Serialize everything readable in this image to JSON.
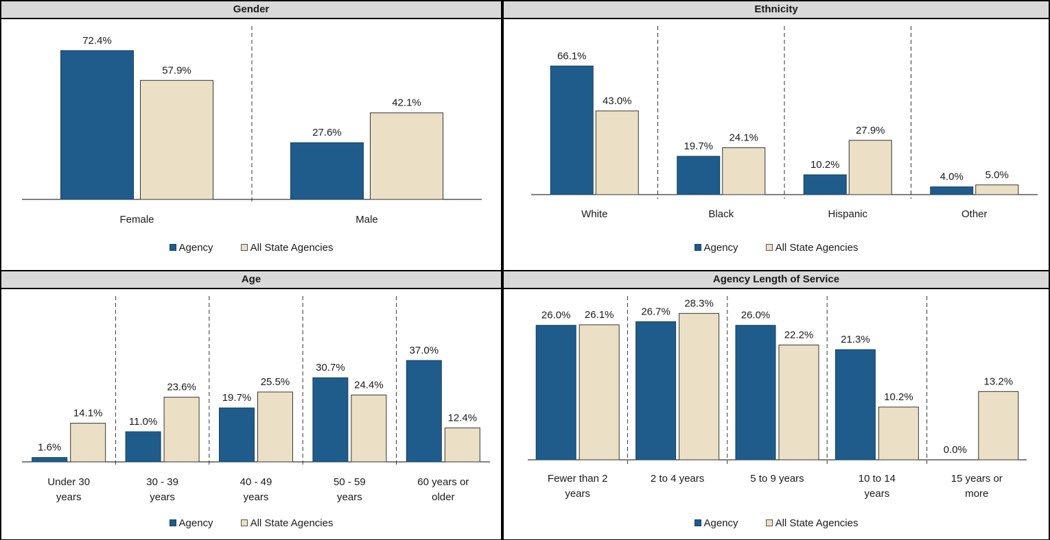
{
  "colors": {
    "agency": "#1f5c8b",
    "state": "#ebe0c5",
    "header_bg": "#d9d9d9"
  },
  "chart_data": [
    {
      "type": "bar",
      "title": "Gender",
      "categories": [
        "Female",
        "Male"
      ],
      "series": [
        {
          "name": "Agency",
          "values": [
            72.4,
            27.6
          ],
          "labels": [
            "72.4%",
            "27.6%"
          ]
        },
        {
          "name": "All State Agencies",
          "values": [
            57.9,
            42.1
          ],
          "labels": [
            "57.9%",
            "42.1%"
          ]
        }
      ],
      "ylim": [
        0,
        80
      ],
      "legend": "bottom",
      "grid": false
    },
    {
      "type": "bar",
      "title": "Ethnicity",
      "categories": [
        "White",
        "Black",
        "Hispanic",
        "Other"
      ],
      "series": [
        {
          "name": "Agency",
          "values": [
            66.1,
            19.7,
            10.2,
            4.0
          ],
          "labels": [
            "66.1%",
            "19.7%",
            "10.2%",
            "4.0%"
          ]
        },
        {
          "name": "All State Agencies",
          "values": [
            43.0,
            24.1,
            27.9,
            5.0
          ],
          "labels": [
            "43.0%",
            "24.1%",
            "27.9%",
            "5.0%"
          ]
        }
      ],
      "ylim": [
        0,
        80
      ],
      "legend": "bottom",
      "grid": false
    },
    {
      "type": "bar",
      "title": "Age",
      "categories": [
        "Under 30 years",
        "30 - 39 years",
        "40 - 49 years",
        "50 - 59 years",
        "60 years or older"
      ],
      "series": [
        {
          "name": "Agency",
          "values": [
            1.6,
            11.0,
            19.7,
            30.7,
            37.0
          ],
          "labels": [
            "1.6%",
            "11.0%",
            "19.7%",
            "30.7%",
            "37.0%"
          ]
        },
        {
          "name": "All State Agencies",
          "values": [
            14.1,
            23.6,
            25.5,
            24.4,
            12.4
          ],
          "labels": [
            "14.1%",
            "23.6%",
            "25.5%",
            "24.4%",
            "12.4%"
          ]
        }
      ],
      "ylim": [
        0,
        45
      ],
      "legend": "bottom",
      "grid": false
    },
    {
      "type": "bar",
      "title": "Agency Length of Service",
      "categories": [
        "Fewer than 2 years",
        "2 to 4 years",
        "5 to 9 years",
        "10 to 14 years",
        "15 years or more"
      ],
      "series": [
        {
          "name": "Agency",
          "values": [
            26.0,
            26.7,
            26.0,
            21.3,
            0.0
          ],
          "labels": [
            "26.0%",
            "26.7%",
            "26.0%",
            "21.3%",
            "0.0%"
          ]
        },
        {
          "name": "All State Agencies",
          "values": [
            26.1,
            28.3,
            22.2,
            10.2,
            13.2
          ],
          "labels": [
            "26.1%",
            "28.3%",
            "22.2%",
            "10.2%",
            "13.2%"
          ]
        }
      ],
      "ylim": [
        0,
        30
      ],
      "legend": "bottom",
      "grid": false
    }
  ]
}
